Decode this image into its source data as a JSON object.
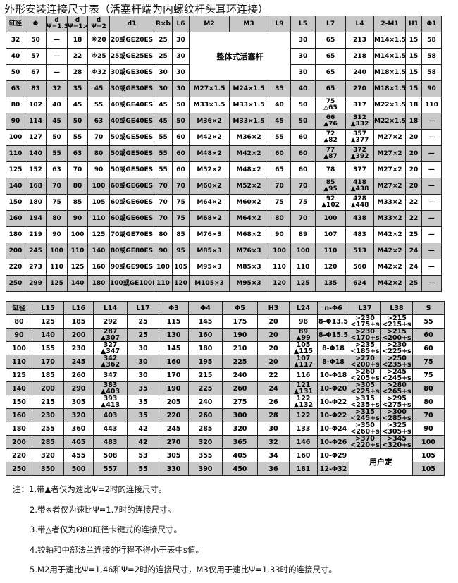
{
  "title": "外形安装连接尺寸表（活塞杆端为内螺纹杆头耳环连接）",
  "table1": {
    "headers": [
      "缸径",
      "Φ",
      [
        "d",
        "Ψ=1.33"
      ],
      [
        "d",
        "Ψ=1.46"
      ],
      [
        "d",
        "Ψ=2"
      ],
      "d1",
      "R×b",
      "L6",
      "M2",
      "M3",
      "L9",
      "L5",
      "L7",
      "L4",
      "2-M1",
      "H1",
      "Φ1"
    ],
    "rows": [
      [
        "32",
        "50",
        "—",
        "18",
        "※20",
        "20或GE20ES",
        "25",
        "30",
        "整体式活塞杆",
        "30",
        "65",
        "213",
        "M14×1.5",
        "15",
        "58"
      ],
      [
        "40",
        "57",
        "—",
        "22",
        "※25",
        "25或GE25ES",
        "25",
        "30",
        "30",
        "65",
        "218",
        "M14×1.5",
        "15",
        "58"
      ],
      [
        "50",
        "67",
        "—",
        "28",
        "※32",
        "30或GE30ES",
        "30",
        "30",
        "30",
        "65",
        "240",
        "M18×1.5",
        "15",
        "58"
      ],
      [
        "63",
        "83",
        "32",
        "35",
        "45",
        "30或GE30ES",
        "30",
        "30",
        "M27×1.5",
        "M24×1.5",
        "35",
        "40",
        "65",
        "270",
        "M18×1.5",
        "15",
        "90"
      ],
      [
        "80",
        "102",
        "40",
        "45",
        "55",
        "40或GE40ES",
        "45",
        "50",
        "M33×1.5",
        "M33×1.5",
        "40",
        "50",
        [
          "75",
          "△65"
        ],
        "317",
        "M22×1.5",
        "18",
        "110"
      ],
      [
        "90",
        "114",
        "45",
        "50",
        "63",
        "40或GE40ES",
        "45",
        "50",
        "M36×2",
        "M33×1.5",
        "45",
        "50",
        [
          "66",
          "▲76"
        ],
        [
          "312",
          "▲332"
        ],
        "M22×1.5",
        "18",
        "—"
      ],
      [
        "100",
        "127",
        "50",
        "55",
        "70",
        "50或GE50ES",
        "55",
        "60",
        "M42×2",
        "M36×2",
        "55",
        "60",
        [
          "72",
          "▲82"
        ],
        [
          "357",
          "▲377"
        ],
        "M27×2",
        "20",
        "—"
      ],
      [
        "110",
        "140",
        "55",
        "63",
        "80",
        "50或GE50ES",
        "55",
        "60",
        "M48×2",
        "M42×2",
        "60",
        "60",
        [
          "77",
          "▲87"
        ],
        [
          "372",
          "▲392"
        ],
        "M27×2",
        "20",
        "—"
      ],
      [
        "125",
        "152",
        "63",
        "70",
        "90",
        "50或GE50ES",
        "55",
        "60",
        "M52×2",
        "M48×2",
        "65",
        "60",
        "78",
        "377",
        "M27×2",
        "20",
        "—"
      ],
      [
        "140",
        "168",
        "70",
        "80",
        "100",
        "60或GE60ES",
        "70",
        "70",
        "M60×2",
        "M52×2",
        "70",
        "70",
        [
          "85",
          "▲95"
        ],
        [
          "418",
          "▲438"
        ],
        "M27×2",
        "20",
        "—"
      ],
      [
        "150",
        "180",
        "75",
        "85",
        "105",
        "60或GE60ES",
        "70",
        "75",
        "M64×2",
        "M60×2",
        "75",
        "75",
        [
          "92",
          "▲102"
        ],
        [
          "428",
          "▲448"
        ],
        "M33×2",
        "22",
        "—"
      ],
      [
        "160",
        "194",
        "80",
        "90",
        "110",
        "60或GE60ES",
        "70",
        "75",
        "M68×2",
        "M64×2",
        "80",
        "70",
        "100",
        "438",
        "M33×2",
        "22",
        "—"
      ],
      [
        "180",
        "219",
        "90",
        "100",
        "125",
        "70或GE70ES",
        "80",
        "85",
        "M76×3",
        "M68×2",
        "90",
        "89",
        "107",
        "483",
        "M42×2",
        "25",
        "—"
      ],
      [
        "200",
        "245",
        "100",
        "110",
        "140",
        "80或GE80ES",
        "90",
        "95",
        "M85×3",
        "M76×3",
        "100",
        "100",
        "110",
        "513",
        "M42×2",
        "24",
        "—"
      ],
      [
        "220",
        "273",
        "110",
        "125",
        "160",
        "90或GE90ES",
        "100",
        "105",
        "M95×3",
        "M85×3",
        "110",
        "110",
        "120",
        "560",
        "M42×2",
        "24",
        "—"
      ],
      [
        "250",
        "299",
        "125",
        "140",
        "180",
        "100或GE100ES",
        "110",
        "120",
        "M105×3",
        "M95×3",
        "120",
        "125",
        "135",
        "624",
        "M42×2",
        "25",
        "—"
      ]
    ]
  },
  "table2": {
    "headers": [
      "缸径",
      "L15",
      "L16",
      "L14",
      "L17",
      "Φ3",
      "Φ4",
      "Φ5",
      "H3",
      "L24",
      "n-Φ6",
      "L37",
      "L38",
      "S"
    ],
    "rows": [
      [
        "80",
        "125",
        "185",
        "292",
        "25",
        "115",
        "145",
        "175",
        "20",
        "98",
        "8-Φ13.5",
        [
          ">230",
          "<175+s"
        ],
        [
          ">215",
          "<215+s"
        ],
        "55"
      ],
      [
        "90",
        "140",
        "200",
        [
          "287",
          "▲307"
        ],
        "25",
        "130",
        "160",
        "190",
        "20",
        [
          "89",
          "▲99"
        ],
        "8-Φ15.5",
        [
          ">230",
          "<170+s"
        ],
        [
          ">215",
          "<200+s"
        ],
        "60"
      ],
      [
        "100",
        "155",
        "230",
        [
          "327",
          "▲347"
        ],
        "30",
        "145",
        "180",
        "210",
        "20",
        [
          "105",
          "▲115"
        ],
        "8-Φ18",
        [
          ">235",
          "<185+s"
        ],
        [
          ">230",
          "<225+s"
        ],
        "60"
      ],
      [
        "110",
        "170",
        "245",
        [
          "342",
          "▲362"
        ],
        "30",
        "160",
        "195",
        "225",
        "20",
        [
          "107",
          "▲117"
        ],
        "8-Φ18",
        [
          ">270",
          "<200+s"
        ],
        [
          ">250",
          "<235+s"
        ],
        "75"
      ],
      [
        "125",
        "185",
        "260",
        "347",
        "30",
        "170",
        "215",
        "240",
        "22",
        "116",
        "10-Φ18",
        [
          ">260",
          "<205+s"
        ],
        [
          ">245",
          "<245+s"
        ],
        "75"
      ],
      [
        "140",
        "200",
        "290",
        [
          "383",
          "▲403"
        ],
        "35",
        "190",
        "225",
        "260",
        "24",
        [
          "121",
          "▲131"
        ],
        "10-Φ20",
        [
          ">305",
          "<225+s"
        ],
        [
          ">280",
          "<265+s"
        ],
        "80"
      ],
      [
        "150",
        "215",
        "305",
        [
          "393",
          "▲413"
        ],
        "35",
        "205",
        "240",
        "275",
        "26",
        [
          "122",
          "▲132"
        ],
        "10-Φ22",
        [
          ">315",
          "<235+s"
        ],
        [
          ">295",
          "<275+s"
        ],
        "80"
      ],
      [
        "160",
        "230",
        "320",
        "403",
        "35",
        "220",
        "260",
        "300",
        "28",
        "122",
        "10-Φ22",
        [
          ">315",
          "<245+s"
        ],
        [
          ">300",
          "<285+s"
        ],
        "70"
      ],
      [
        "180",
        "255",
        "360",
        "443",
        "42",
        "245",
        "285",
        "320",
        "30",
        "133",
        "10-Φ24",
        [
          ">350",
          "<260+s"
        ],
        [
          ">325",
          "<305+s"
        ],
        "90"
      ],
      [
        "200",
        "285",
        "405",
        "483",
        "42",
        "270",
        "320",
        "365",
        "32",
        "146",
        "10-Φ26",
        [
          ">370",
          "<220+s"
        ],
        [
          ">345",
          "<320+s"
        ],
        "100"
      ],
      [
        "220",
        "320",
        "455",
        "508",
        "53",
        "305",
        "355",
        "405",
        "34",
        "160",
        "10-Φ29",
        "用户定",
        "105"
      ],
      [
        "250",
        "350",
        "500",
        "557",
        "55",
        "330",
        "390",
        "450",
        "36",
        "181",
        "12-Φ32",
        "105"
      ]
    ]
  },
  "notes": [
    "注：1.带▲者仅为速比Ψ=2时的连接尺寸。",
    "2.带※者仅为速比Ψ=1.7时的连接尺寸。",
    "3.带△者仅为Ø80缸径卡键式的连接尺寸。",
    "4.铰轴和中部法兰连接的行程不得小于表中s值。",
    "5.M2用于速比Ψ=1.46和Ψ=2时的连接尺寸，M3仅用于速比Ψ=1.33时的连接尺寸。"
  ]
}
